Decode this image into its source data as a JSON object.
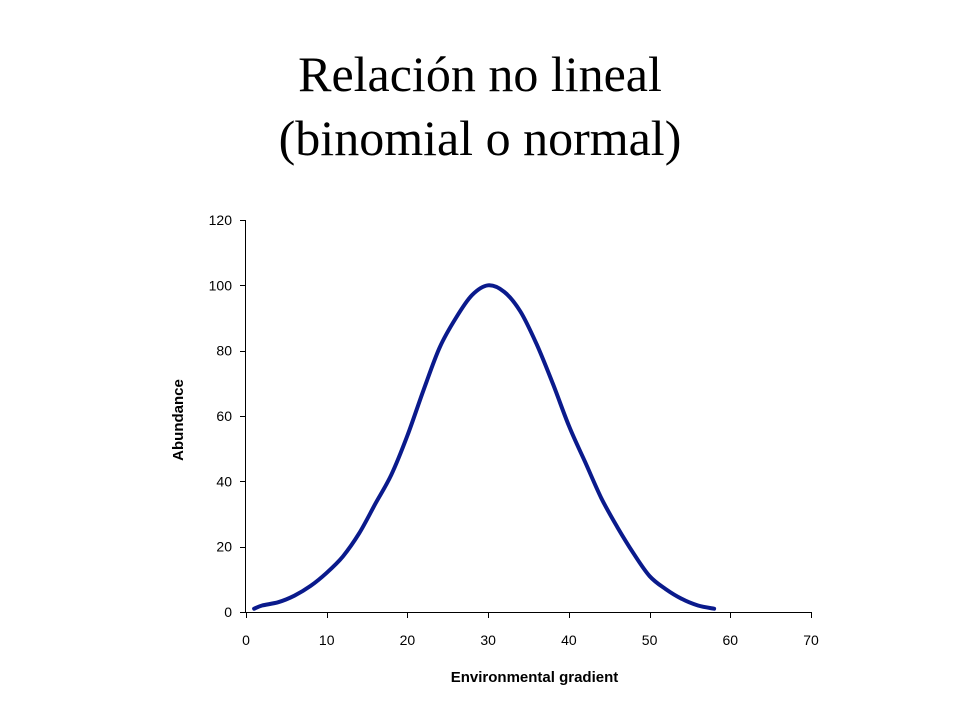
{
  "slide": {
    "title_line1": "Relación no lineal",
    "title_line2": "(binomial o normal)"
  },
  "chart_data": {
    "type": "line",
    "title": "",
    "xlabel": "Environmental gradient",
    "ylabel": "Abundance",
    "xlim": [
      0,
      70
    ],
    "ylim": [
      0,
      120
    ],
    "xticks": [
      0,
      10,
      20,
      30,
      40,
      50,
      60,
      70
    ],
    "yticks": [
      0,
      20,
      40,
      60,
      80,
      100,
      120
    ],
    "grid": false,
    "legend": "none",
    "series": [
      {
        "color": "#0a1a8c",
        "x": [
          1,
          2,
          4,
          6,
          8,
          10,
          12,
          14,
          16,
          18,
          20,
          22,
          24,
          26,
          28,
          30,
          32,
          34,
          36,
          38,
          40,
          42,
          44,
          46,
          48,
          50,
          52,
          54,
          56,
          58
        ],
        "y": [
          1,
          2,
          3,
          5,
          8,
          12,
          17,
          24,
          33,
          42,
          54,
          68,
          81,
          90,
          97,
          100,
          98,
          92,
          82,
          70,
          57,
          46,
          35,
          26,
          18,
          11,
          7,
          4,
          2,
          1
        ]
      }
    ]
  }
}
